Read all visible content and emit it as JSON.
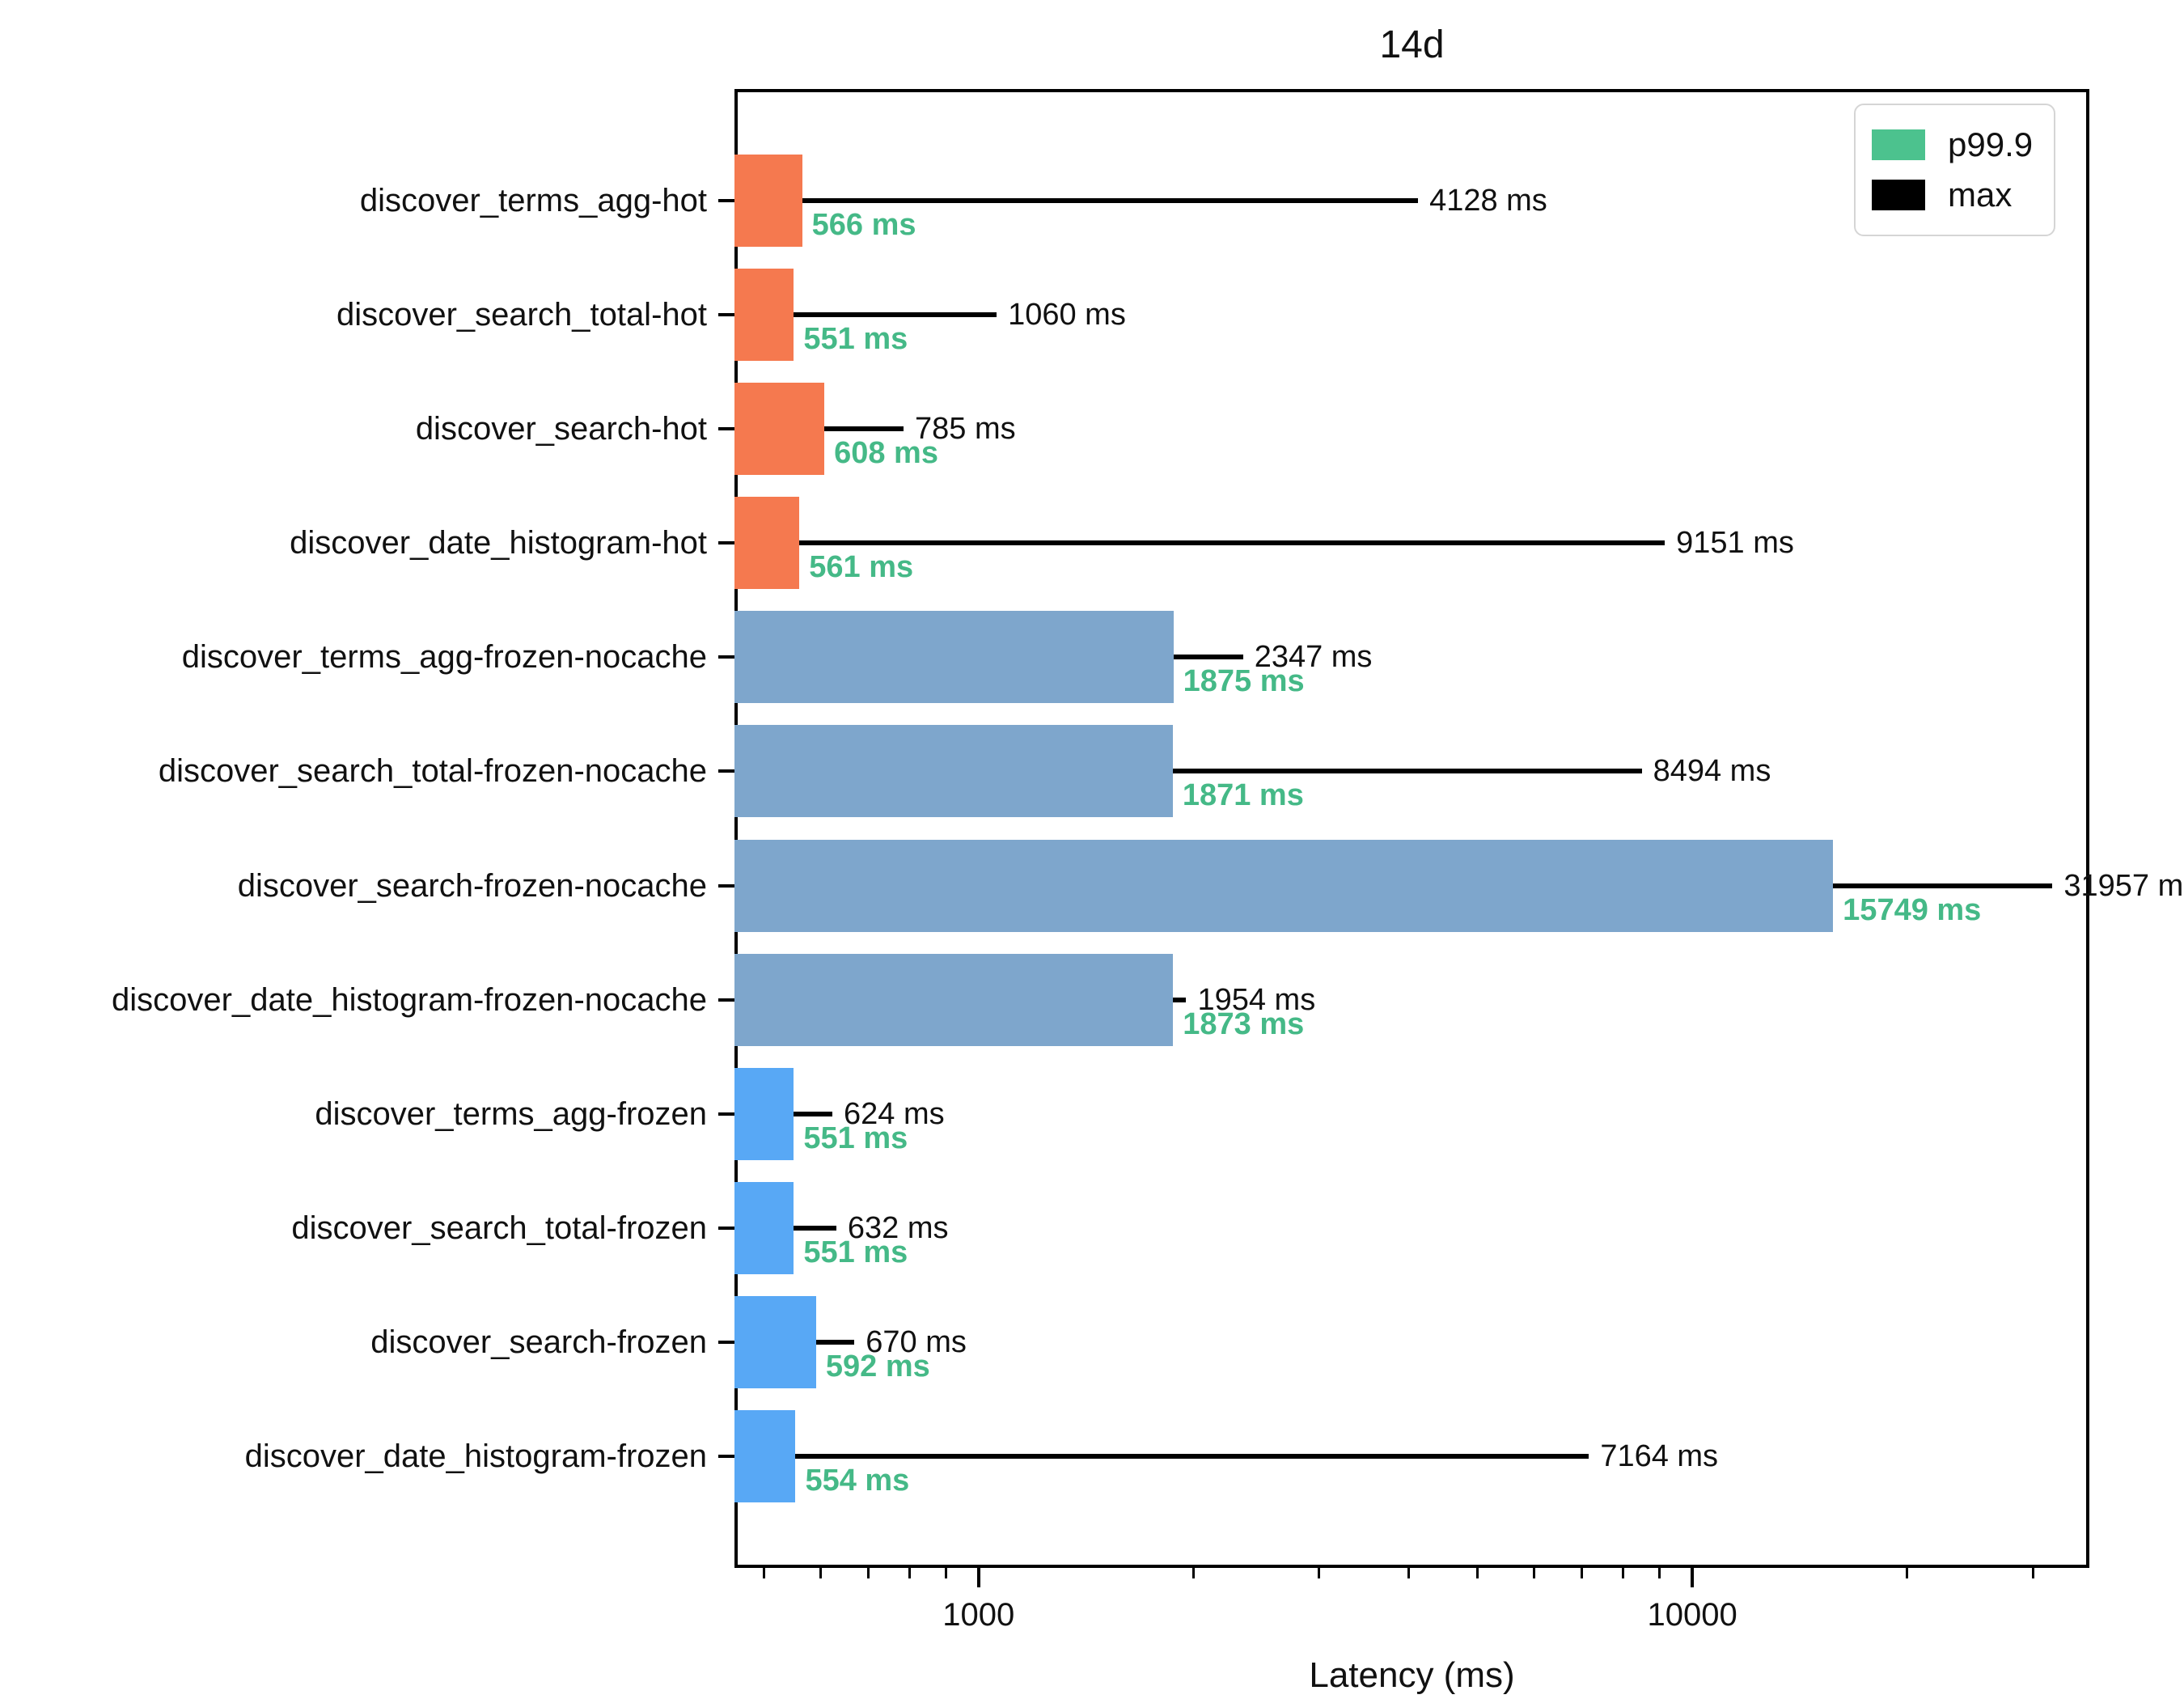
{
  "title": "14d",
  "chart_data": {
    "type": "bar",
    "orientation": "horizontal",
    "title": "14d",
    "xlabel": "Latency (ms)",
    "xscale": "log",
    "xlim": [
      455,
      36000
    ],
    "grid": false,
    "legend_position": "top-right",
    "categories": [
      "discover_terms_agg-hot",
      "discover_search_total-hot",
      "discover_search-hot",
      "discover_date_histogram-hot",
      "discover_terms_agg-frozen-nocache",
      "discover_search_total-frozen-nocache",
      "discover_search-frozen-nocache",
      "discover_date_histogram-frozen-nocache",
      "discover_terms_agg-frozen",
      "discover_search_total-frozen",
      "discover_search-frozen",
      "discover_date_histogram-frozen"
    ],
    "series": [
      {
        "name": "p99.9",
        "unit": "ms",
        "values": [
          566,
          551,
          608,
          561,
          1875,
          1871,
          15749,
          1873,
          551,
          551,
          592,
          554
        ]
      },
      {
        "name": "max",
        "unit": "ms",
        "values": [
          4128,
          1060,
          785,
          9151,
          2347,
          8494,
          31957,
          1954,
          624,
          632,
          670,
          7164
        ]
      }
    ],
    "bar_groups": [
      "hot",
      "hot",
      "hot",
      "hot",
      "frozen-nocache",
      "frozen-nocache",
      "frozen-nocache",
      "frozen-nocache",
      "frozen",
      "frozen",
      "frozen",
      "frozen"
    ],
    "group_colors": {
      "hot": "#f5794f",
      "frozen-nocache": "#7ea6cc",
      "frozen": "#58a8f5"
    },
    "value_label_suffix": " ms",
    "p99_label_color": "#45b987",
    "whisker_color": "#000000",
    "xticks_major": [
      {
        "value": 1000,
        "label": "1000"
      },
      {
        "value": 10000,
        "label": "10000"
      }
    ],
    "xticks_minor": [
      500,
      600,
      700,
      800,
      900,
      2000,
      3000,
      4000,
      5000,
      6000,
      7000,
      8000,
      9000,
      20000,
      30000
    ],
    "legend": [
      {
        "label": "p99.9",
        "color": "#4cc28e"
      },
      {
        "label": "max",
        "color": "#000000"
      }
    ]
  }
}
